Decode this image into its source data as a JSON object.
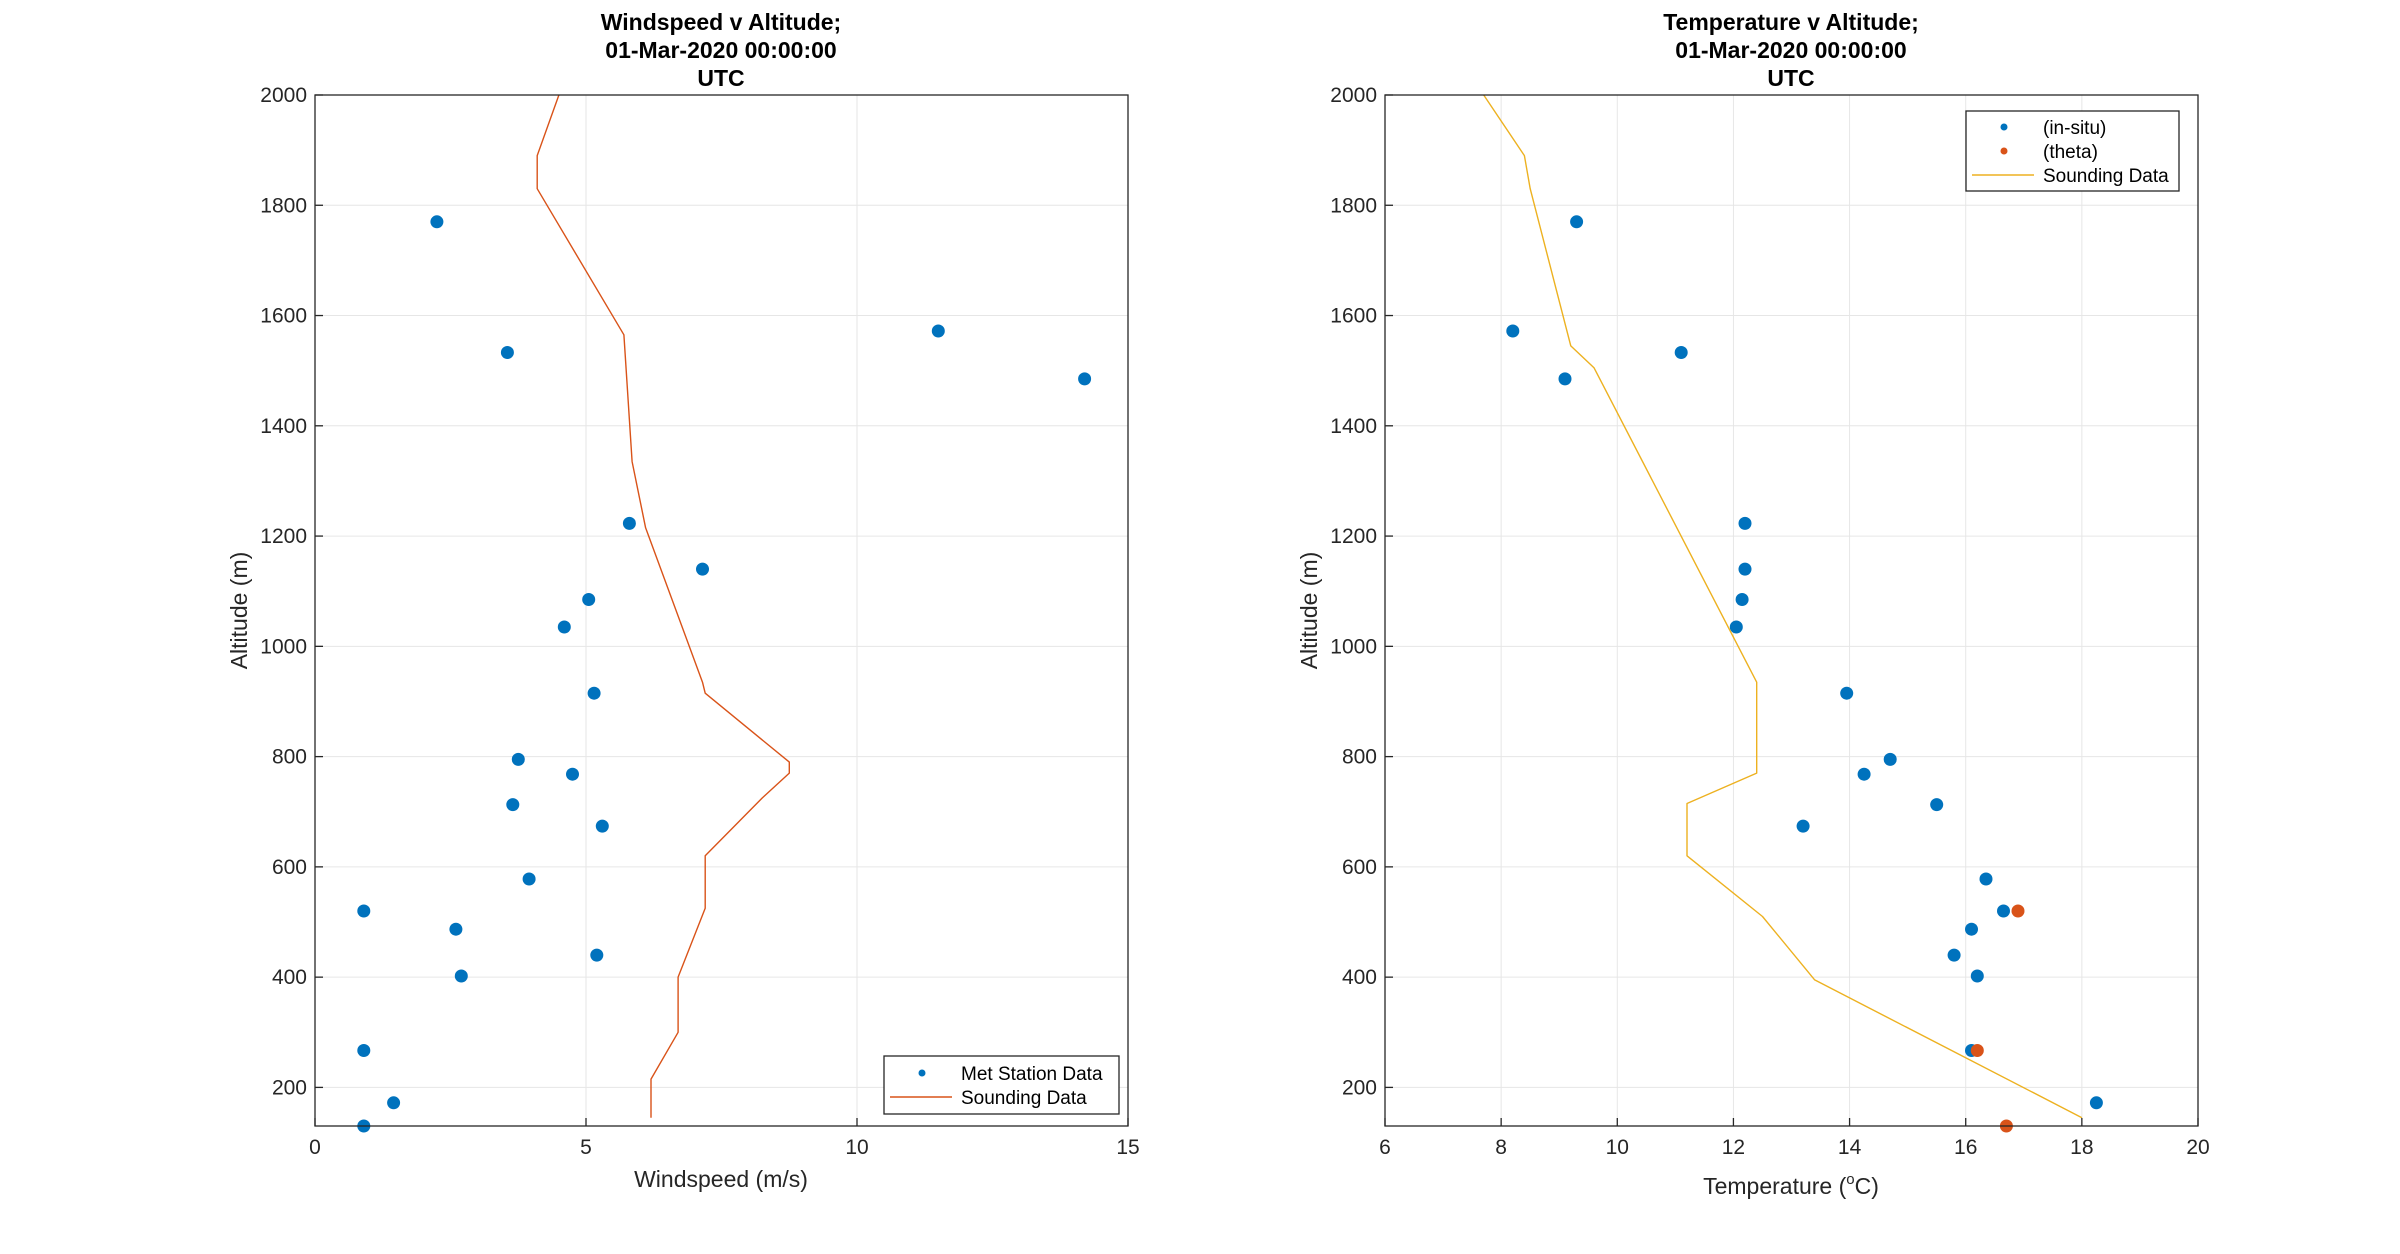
{
  "colors": {
    "station": "#0072BD",
    "theta": "#D95319",
    "sounding_wind": "#D95319",
    "sounding_temp": "#EDB120",
    "grid": "#e6e6e6",
    "axis": "#262626"
  },
  "chart_data": [
    {
      "type": "scatter",
      "title": [
        "Windspeed v Altitude;",
        "01-Mar-2020 00:00:00",
        "UTC"
      ],
      "xlabel": "Windspeed (m/s)",
      "ylabel": "Altitude (m)",
      "xlim": [
        0,
        15
      ],
      "ylim": [
        130,
        2000
      ],
      "xticks": [
        0,
        5,
        10,
        15
      ],
      "yticks": [
        200,
        400,
        600,
        800,
        1000,
        1200,
        1400,
        1600,
        1800,
        2000
      ],
      "grid": true,
      "legend_position": "bottom-right",
      "series": [
        {
          "name": "Met Station Data",
          "kind": "scatter",
          "color": "#0072BD",
          "points": [
            [
              2.25,
              1770
            ],
            [
              3.55,
              1533
            ],
            [
              11.5,
              1572
            ],
            [
              14.2,
              1485
            ],
            [
              5.8,
              1223
            ],
            [
              7.15,
              1140
            ],
            [
              5.05,
              1085
            ],
            [
              4.6,
              1035
            ],
            [
              5.15,
              915
            ],
            [
              3.75,
              795
            ],
            [
              4.75,
              768
            ],
            [
              3.65,
              713
            ],
            [
              5.3,
              674
            ],
            [
              3.95,
              578
            ],
            [
              0.9,
              520
            ],
            [
              2.6,
              487
            ],
            [
              5.2,
              440
            ],
            [
              2.7,
              402
            ],
            [
              0.9,
              267
            ],
            [
              1.45,
              172
            ],
            [
              0.9,
              130
            ]
          ]
        },
        {
          "name": "Sounding Data",
          "kind": "line",
          "color": "#D95319",
          "points": [
            [
              4.5,
              2000
            ],
            [
              4.1,
              1890
            ],
            [
              4.1,
              1830
            ],
            [
              5.7,
              1565
            ],
            [
              5.85,
              1335
            ],
            [
              6.1,
              1215
            ],
            [
              7.15,
              935
            ],
            [
              7.2,
              915
            ],
            [
              8.75,
              790
            ],
            [
              8.75,
              770
            ],
            [
              8.25,
              725
            ],
            [
              7.2,
              620
            ],
            [
              7.2,
              525
            ],
            [
              6.7,
              400
            ],
            [
              6.7,
              300
            ],
            [
              6.2,
              215
            ],
            [
              6.2,
              145
            ]
          ]
        }
      ]
    },
    {
      "type": "scatter",
      "title": [
        "Temperature v Altitude;",
        "01-Mar-2020 00:00:00",
        "UTC"
      ],
      "xlabel": "Temperature (",
      "xlabel_sup": "o",
      "xlabel_end": "C)",
      "ylabel": "Altitude (m)",
      "xlim": [
        6,
        20
      ],
      "ylim": [
        130,
        2000
      ],
      "xticks": [
        6,
        8,
        10,
        12,
        14,
        16,
        18,
        20
      ],
      "yticks": [
        200,
        400,
        600,
        800,
        1000,
        1200,
        1400,
        1600,
        1800,
        2000
      ],
      "grid": true,
      "legend_position": "top-right",
      "series": [
        {
          "name": "(in-situ)",
          "kind": "scatter",
          "color": "#0072BD",
          "points": [
            [
              9.3,
              1770
            ],
            [
              8.2,
              1572
            ],
            [
              11.1,
              1533
            ],
            [
              9.1,
              1485
            ],
            [
              12.2,
              1223
            ],
            [
              12.2,
              1140
            ],
            [
              12.15,
              1085
            ],
            [
              12.05,
              1035
            ],
            [
              13.95,
              915
            ],
            [
              14.7,
              795
            ],
            [
              14.25,
              768
            ],
            [
              15.5,
              713
            ],
            [
              13.2,
              674
            ],
            [
              16.35,
              578
            ],
            [
              16.65,
              520
            ],
            [
              16.1,
              487
            ],
            [
              15.8,
              440
            ],
            [
              16.2,
              402
            ],
            [
              16.1,
              267
            ],
            [
              18.25,
              172
            ]
          ]
        },
        {
          "name": "(theta)",
          "kind": "scatter",
          "color": "#D95319",
          "points": [
            [
              16.9,
              520
            ],
            [
              16.2,
              267
            ],
            [
              16.7,
              130
            ]
          ]
        },
        {
          "name": "Sounding Data",
          "kind": "line",
          "color": "#EDB120",
          "points": [
            [
              7.7,
              2000
            ],
            [
              8.4,
              1890
            ],
            [
              8.5,
              1830
            ],
            [
              9.2,
              1545
            ],
            [
              9.6,
              1505
            ],
            [
              12.4,
              935
            ],
            [
              12.4,
              770
            ],
            [
              11.2,
              715
            ],
            [
              11.2,
              620
            ],
            [
              12.5,
              510
            ],
            [
              13.4,
              395
            ],
            [
              18.0,
              145
            ]
          ]
        }
      ]
    }
  ]
}
